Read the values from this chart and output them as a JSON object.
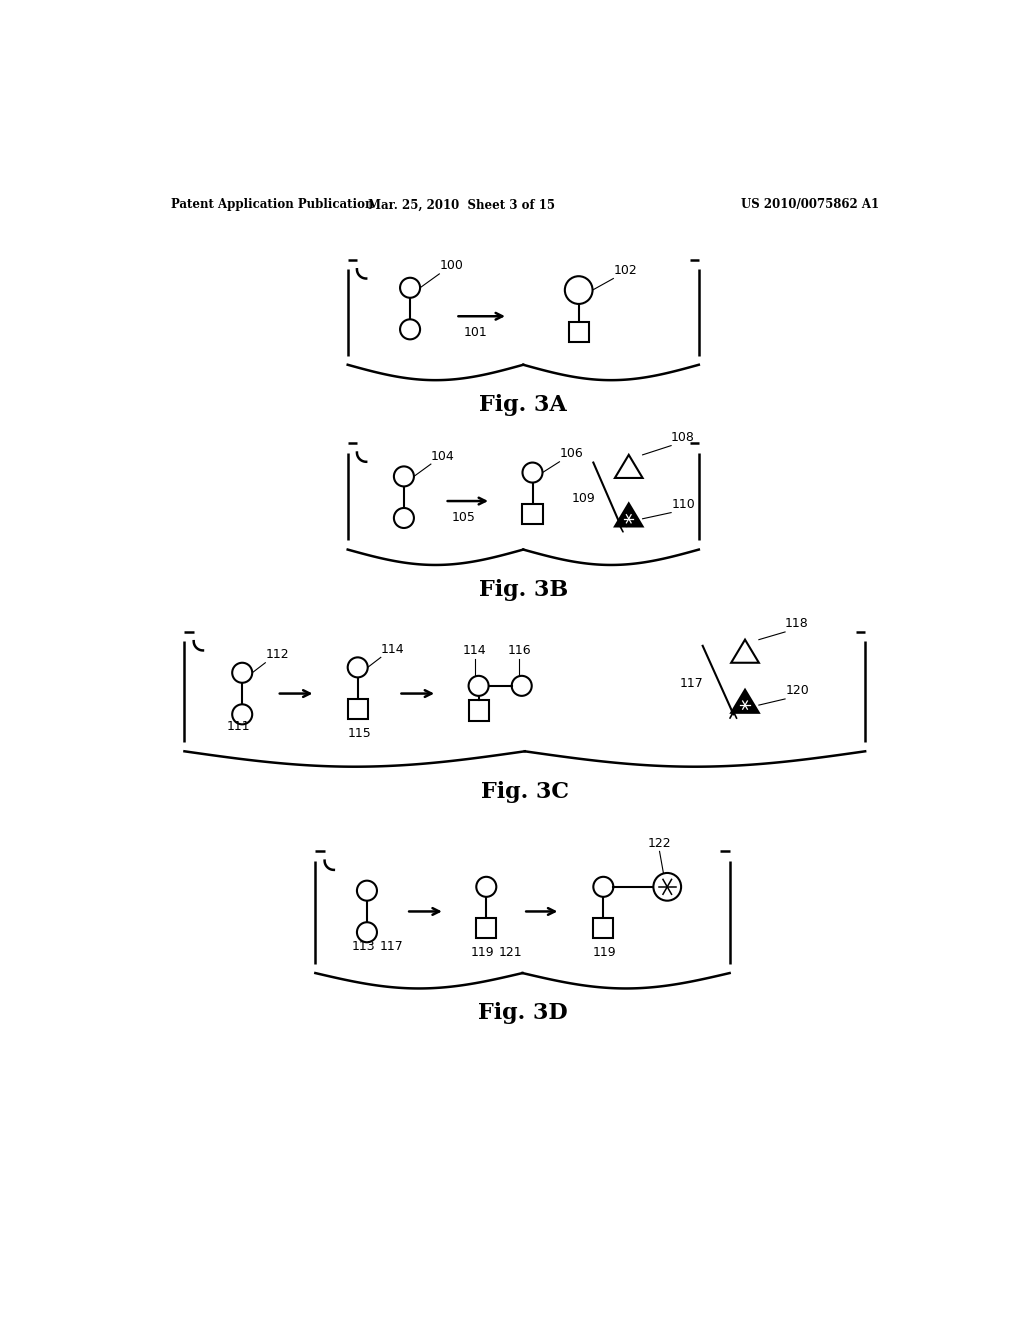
{
  "bg_color": "#ffffff",
  "header_left": "Patent Application Publication",
  "header_center": "Mar. 25, 2010  Sheet 3 of 15",
  "header_right": "US 2010/0075862 A1"
}
